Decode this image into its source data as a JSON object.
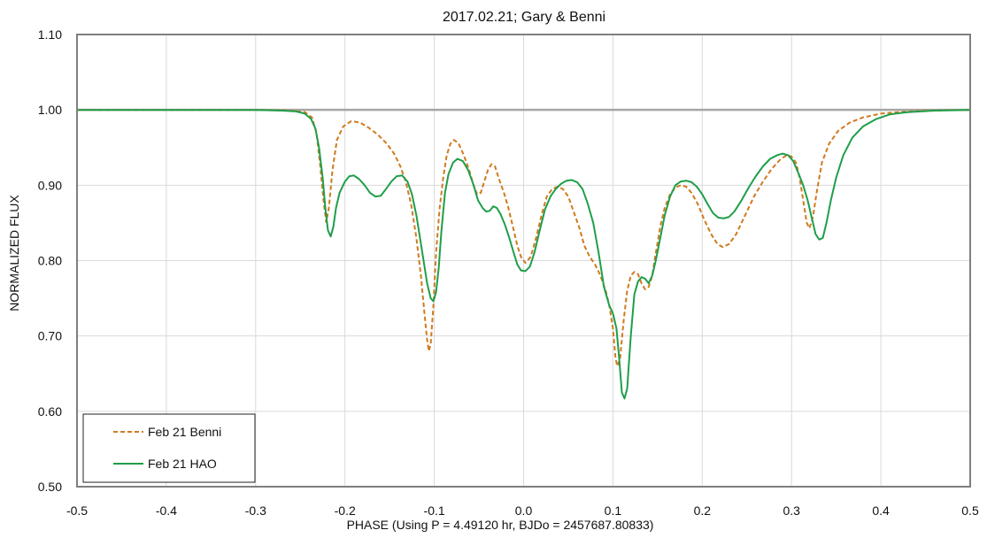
{
  "chart_data": {
    "type": "line",
    "title": "2017.02.21; Gary & Benni",
    "xlabel": "PHASE (Using P = 4.49120 hr, BJDo = 2457687.80833)",
    "ylabel": "NORMALIZED FLUX",
    "xlim": [
      -0.5,
      0.5
    ],
    "ylim": [
      0.5,
      1.1
    ],
    "x_ticks": [
      "-0.5",
      "-0.4",
      "-0.3",
      "-0.2",
      "-0.1",
      "0.0",
      "0.1",
      "0.2",
      "0.3",
      "0.4",
      "0.5"
    ],
    "y_ticks": [
      "0.50",
      "0.60",
      "0.70",
      "0.80",
      "0.90",
      "1.00",
      "1.10"
    ],
    "grid": true,
    "legend_position": "bottom-left",
    "reference_line_y": 1.0,
    "series": [
      {
        "name": "Feb 21 Benni",
        "color": "#d07a1e",
        "style": "dashed",
        "points": [
          [
            -0.5,
            1.0
          ],
          [
            -0.3,
            1.0
          ],
          [
            -0.26,
            0.999
          ],
          [
            -0.245,
            0.997
          ],
          [
            -0.237,
            0.99
          ],
          [
            -0.232,
            0.97
          ],
          [
            -0.228,
            0.93
          ],
          [
            -0.224,
            0.88
          ],
          [
            -0.221,
            0.851
          ],
          [
            -0.218,
            0.87
          ],
          [
            -0.214,
            0.92
          ],
          [
            -0.209,
            0.96
          ],
          [
            -0.202,
            0.978
          ],
          [
            -0.193,
            0.985
          ],
          [
            -0.183,
            0.983
          ],
          [
            -0.173,
            0.976
          ],
          [
            -0.163,
            0.967
          ],
          [
            -0.153,
            0.955
          ],
          [
            -0.145,
            0.942
          ],
          [
            -0.138,
            0.925
          ],
          [
            -0.132,
            0.905
          ],
          [
            -0.126,
            0.875
          ],
          [
            -0.12,
            0.83
          ],
          [
            -0.115,
            0.78
          ],
          [
            -0.111,
            0.73
          ],
          [
            -0.108,
            0.695
          ],
          [
            -0.106,
            0.68
          ],
          [
            -0.104,
            0.69
          ],
          [
            -0.101,
            0.74
          ],
          [
            -0.098,
            0.81
          ],
          [
            -0.094,
            0.87
          ],
          [
            -0.09,
            0.91
          ],
          [
            -0.086,
            0.94
          ],
          [
            -0.082,
            0.955
          ],
          [
            -0.078,
            0.96
          ],
          [
            -0.073,
            0.956
          ],
          [
            -0.067,
            0.94
          ],
          [
            -0.061,
            0.92
          ],
          [
            -0.056,
            0.9
          ],
          [
            -0.052,
            0.888
          ],
          [
            -0.048,
            0.89
          ],
          [
            -0.044,
            0.905
          ],
          [
            -0.04,
            0.92
          ],
          [
            -0.036,
            0.928
          ],
          [
            -0.032,
            0.925
          ],
          [
            -0.028,
            0.91
          ],
          [
            -0.022,
            0.89
          ],
          [
            -0.017,
            0.87
          ],
          [
            -0.012,
            0.845
          ],
          [
            -0.007,
            0.82
          ],
          [
            -0.003,
            0.805
          ],
          [
            0.002,
            0.797
          ],
          [
            0.008,
            0.805
          ],
          [
            0.014,
            0.83
          ],
          [
            0.02,
            0.86
          ],
          [
            0.026,
            0.885
          ],
          [
            0.032,
            0.895
          ],
          [
            0.038,
            0.898
          ],
          [
            0.044,
            0.895
          ],
          [
            0.05,
            0.885
          ],
          [
            0.056,
            0.865
          ],
          [
            0.062,
            0.845
          ],
          [
            0.068,
            0.82
          ],
          [
            0.074,
            0.805
          ],
          [
            0.08,
            0.795
          ],
          [
            0.086,
            0.78
          ],
          [
            0.092,
            0.76
          ],
          [
            0.096,
            0.74
          ],
          [
            0.1,
            0.71
          ],
          [
            0.103,
            0.67
          ],
          [
            0.105,
            0.66
          ],
          [
            0.108,
            0.67
          ],
          [
            0.112,
            0.72
          ],
          [
            0.116,
            0.76
          ],
          [
            0.12,
            0.78
          ],
          [
            0.124,
            0.785
          ],
          [
            0.128,
            0.782
          ],
          [
            0.132,
            0.77
          ],
          [
            0.136,
            0.762
          ],
          [
            0.14,
            0.765
          ],
          [
            0.144,
            0.78
          ],
          [
            0.148,
            0.81
          ],
          [
            0.153,
            0.845
          ],
          [
            0.158,
            0.87
          ],
          [
            0.164,
            0.888
          ],
          [
            0.17,
            0.897
          ],
          [
            0.176,
            0.9
          ],
          [
            0.182,
            0.898
          ],
          [
            0.188,
            0.89
          ],
          [
            0.195,
            0.875
          ],
          [
            0.202,
            0.855
          ],
          [
            0.21,
            0.835
          ],
          [
            0.217,
            0.822
          ],
          [
            0.223,
            0.818
          ],
          [
            0.23,
            0.822
          ],
          [
            0.238,
            0.835
          ],
          [
            0.248,
            0.86
          ],
          [
            0.258,
            0.885
          ],
          [
            0.268,
            0.905
          ],
          [
            0.278,
            0.922
          ],
          [
            0.288,
            0.935
          ],
          [
            0.295,
            0.94
          ],
          [
            0.3,
            0.938
          ],
          [
            0.305,
            0.93
          ],
          [
            0.309,
            0.91
          ],
          [
            0.313,
            0.88
          ],
          [
            0.317,
            0.85
          ],
          [
            0.32,
            0.843
          ],
          [
            0.324,
            0.858
          ],
          [
            0.328,
            0.89
          ],
          [
            0.334,
            0.93
          ],
          [
            0.342,
            0.955
          ],
          [
            0.352,
            0.972
          ],
          [
            0.365,
            0.983
          ],
          [
            0.38,
            0.99
          ],
          [
            0.4,
            0.995
          ],
          [
            0.42,
            0.997
          ],
          [
            0.45,
            0.999
          ],
          [
            0.5,
            1.0
          ]
        ]
      },
      {
        "name": "Feb 21 HAO",
        "color": "#1f9e4a",
        "style": "solid",
        "points": [
          [
            -0.5,
            1.0
          ],
          [
            -0.3,
            1.0
          ],
          [
            -0.27,
            0.999
          ],
          [
            -0.255,
            0.998
          ],
          [
            -0.245,
            0.995
          ],
          [
            -0.238,
            0.988
          ],
          [
            -0.233,
            0.975
          ],
          [
            -0.229,
            0.95
          ],
          [
            -0.225,
            0.91
          ],
          [
            -0.222,
            0.87
          ],
          [
            -0.219,
            0.84
          ],
          [
            -0.216,
            0.832
          ],
          [
            -0.213,
            0.845
          ],
          [
            -0.21,
            0.87
          ],
          [
            -0.206,
            0.89
          ],
          [
            -0.2,
            0.905
          ],
          [
            -0.195,
            0.912
          ],
          [
            -0.19,
            0.913
          ],
          [
            -0.184,
            0.908
          ],
          [
            -0.178,
            0.9
          ],
          [
            -0.172,
            0.89
          ],
          [
            -0.166,
            0.885
          ],
          [
            -0.16,
            0.886
          ],
          [
            -0.154,
            0.895
          ],
          [
            -0.148,
            0.905
          ],
          [
            -0.142,
            0.912
          ],
          [
            -0.136,
            0.913
          ],
          [
            -0.13,
            0.905
          ],
          [
            -0.125,
            0.888
          ],
          [
            -0.12,
            0.86
          ],
          [
            -0.116,
            0.83
          ],
          [
            -0.112,
            0.8
          ],
          [
            -0.108,
            0.77
          ],
          [
            -0.104,
            0.75
          ],
          [
            -0.101,
            0.746
          ],
          [
            -0.098,
            0.758
          ],
          [
            -0.095,
            0.79
          ],
          [
            -0.092,
            0.84
          ],
          [
            -0.088,
            0.89
          ],
          [
            -0.084,
            0.915
          ],
          [
            -0.079,
            0.93
          ],
          [
            -0.074,
            0.935
          ],
          [
            -0.068,
            0.932
          ],
          [
            -0.062,
            0.92
          ],
          [
            -0.056,
            0.9
          ],
          [
            -0.051,
            0.88
          ],
          [
            -0.046,
            0.87
          ],
          [
            -0.042,
            0.865
          ],
          [
            -0.038,
            0.866
          ],
          [
            -0.034,
            0.872
          ],
          [
            -0.03,
            0.87
          ],
          [
            -0.026,
            0.862
          ],
          [
            -0.021,
            0.848
          ],
          [
            -0.016,
            0.83
          ],
          [
            -0.011,
            0.81
          ],
          [
            -0.007,
            0.795
          ],
          [
            -0.003,
            0.787
          ],
          [
            0.002,
            0.786
          ],
          [
            0.007,
            0.792
          ],
          [
            0.012,
            0.81
          ],
          [
            0.018,
            0.84
          ],
          [
            0.024,
            0.868
          ],
          [
            0.03,
            0.885
          ],
          [
            0.036,
            0.895
          ],
          [
            0.042,
            0.902
          ],
          [
            0.048,
            0.906
          ],
          [
            0.054,
            0.907
          ],
          [
            0.06,
            0.904
          ],
          [
            0.066,
            0.895
          ],
          [
            0.072,
            0.875
          ],
          [
            0.078,
            0.85
          ],
          [
            0.084,
            0.81
          ],
          [
            0.09,
            0.765
          ],
          [
            0.096,
            0.74
          ],
          [
            0.1,
            0.73
          ],
          [
            0.104,
            0.71
          ],
          [
            0.107,
            0.67
          ],
          [
            0.11,
            0.625
          ],
          [
            0.113,
            0.617
          ],
          [
            0.116,
            0.63
          ],
          [
            0.12,
            0.7
          ],
          [
            0.124,
            0.755
          ],
          [
            0.128,
            0.772
          ],
          [
            0.132,
            0.778
          ],
          [
            0.136,
            0.776
          ],
          [
            0.14,
            0.77
          ],
          [
            0.144,
            0.78
          ],
          [
            0.148,
            0.8
          ],
          [
            0.153,
            0.83
          ],
          [
            0.158,
            0.86
          ],
          [
            0.164,
            0.885
          ],
          [
            0.17,
            0.9
          ],
          [
            0.176,
            0.905
          ],
          [
            0.182,
            0.906
          ],
          [
            0.188,
            0.904
          ],
          [
            0.194,
            0.898
          ],
          [
            0.2,
            0.888
          ],
          [
            0.206,
            0.875
          ],
          [
            0.212,
            0.863
          ],
          [
            0.218,
            0.857
          ],
          [
            0.224,
            0.856
          ],
          [
            0.23,
            0.858
          ],
          [
            0.236,
            0.865
          ],
          [
            0.244,
            0.88
          ],
          [
            0.252,
            0.897
          ],
          [
            0.26,
            0.912
          ],
          [
            0.268,
            0.925
          ],
          [
            0.276,
            0.935
          ],
          [
            0.284,
            0.94
          ],
          [
            0.29,
            0.942
          ],
          [
            0.296,
            0.94
          ],
          [
            0.302,
            0.932
          ],
          [
            0.308,
            0.915
          ],
          [
            0.313,
            0.9
          ],
          [
            0.318,
            0.88
          ],
          [
            0.323,
            0.855
          ],
          [
            0.327,
            0.835
          ],
          [
            0.331,
            0.828
          ],
          [
            0.335,
            0.83
          ],
          [
            0.339,
            0.85
          ],
          [
            0.344,
            0.88
          ],
          [
            0.35,
            0.91
          ],
          [
            0.358,
            0.94
          ],
          [
            0.368,
            0.963
          ],
          [
            0.38,
            0.978
          ],
          [
            0.395,
            0.988
          ],
          [
            0.41,
            0.994
          ],
          [
            0.43,
            0.997
          ],
          [
            0.46,
            0.999
          ],
          [
            0.5,
            1.0
          ]
        ]
      }
    ]
  }
}
